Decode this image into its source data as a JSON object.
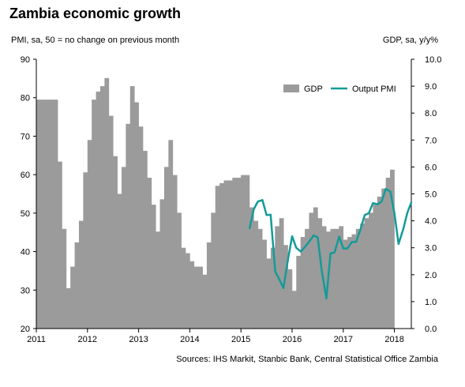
{
  "title": "Zambia economic growth",
  "left_axis_label": "PMI, sa, 50 = no change on previous month",
  "right_axis_label": "GDP, sa, y/y%",
  "source": "Sources: IHS Markit, Stanbic Bank, Central Statistical Office Zambia",
  "colors": {
    "gdp": "#9b9b9b",
    "pmi": "#139b98",
    "axis": "#000000"
  },
  "chart_data": {
    "type": "bar",
    "left_ylim": [
      20,
      90
    ],
    "left_yticks": [
      "90",
      "80",
      "70",
      "60",
      "50",
      "40",
      "30",
      "20"
    ],
    "right_ylim": [
      0.0,
      10.0
    ],
    "right_yticks": [
      "10.0",
      "9.0",
      "8.0",
      "7.0",
      "6.0",
      "5.0",
      "4.0",
      "3.0",
      "2.0",
      "1.0",
      "0.0"
    ],
    "xlim": [
      2011.0,
      2018.33
    ],
    "x_tick_labels": [
      "2011",
      "2012",
      "2013",
      "2014",
      "2015",
      "2016",
      "2017",
      "2018"
    ],
    "grid": false,
    "legend_position": "top-right",
    "series": [
      {
        "name": "GDP",
        "type": "bar",
        "axis": "right",
        "start": 2011.0,
        "step": 0.0833,
        "values": [
          8.5,
          8.5,
          8.5,
          8.5,
          8.5,
          6.2,
          3.7,
          1.5,
          2.3,
          3.2,
          4.0,
          5.8,
          7.0,
          8.5,
          8.8,
          9.0,
          9.3,
          7.9,
          6.4,
          5.0,
          6.0,
          7.6,
          9.0,
          8.4,
          7.5,
          6.6,
          5.6,
          4.6,
          3.6,
          4.8,
          6.0,
          7.0,
          5.7,
          4.3,
          3.0,
          2.8,
          2.5,
          2.3,
          2.3,
          2.0,
          3.2,
          4.3,
          5.3,
          5.4,
          5.5,
          5.5,
          5.6,
          5.6,
          5.7,
          5.7,
          4.5,
          4.0,
          3.7,
          3.3,
          2.6,
          3.0,
          3.8,
          4.1,
          3.1,
          2.2,
          1.4,
          2.7,
          3.4,
          3.7,
          4.3,
          4.5,
          4.1,
          3.8,
          3.6,
          3.7,
          3.7,
          3.8,
          3.3,
          3.4,
          3.5,
          3.7,
          3.9,
          4.1,
          4.3,
          4.6,
          4.9,
          5.2,
          5.6,
          5.9
        ]
      },
      {
        "name": "Output PMI",
        "type": "line",
        "axis": "left",
        "points": [
          [
            2015.17,
            46.1
          ],
          [
            2015.25,
            51.0
          ],
          [
            2015.33,
            53.0
          ],
          [
            2015.42,
            53.4
          ],
          [
            2015.5,
            49.5
          ],
          [
            2015.58,
            49.6
          ],
          [
            2015.67,
            34.8
          ],
          [
            2015.75,
            32.8
          ],
          [
            2015.83,
            30.5
          ],
          [
            2015.92,
            38.0
          ],
          [
            2016.0,
            44.0
          ],
          [
            2016.08,
            41.0
          ],
          [
            2016.17,
            40.0
          ],
          [
            2016.25,
            41.2
          ],
          [
            2016.33,
            42.5
          ],
          [
            2016.42,
            44.2
          ],
          [
            2016.5,
            43.7
          ],
          [
            2016.58,
            35.0
          ],
          [
            2016.67,
            27.8
          ],
          [
            2016.75,
            39.5
          ],
          [
            2016.83,
            39.8
          ],
          [
            2016.92,
            43.9
          ],
          [
            2017.0,
            40.8
          ],
          [
            2017.08,
            40.8
          ],
          [
            2017.17,
            42.5
          ],
          [
            2017.25,
            42.5
          ],
          [
            2017.33,
            45.5
          ],
          [
            2017.42,
            49.5
          ],
          [
            2017.5,
            50.0
          ],
          [
            2017.58,
            52.6
          ],
          [
            2017.67,
            52.3
          ],
          [
            2017.75,
            53.0
          ],
          [
            2017.83,
            56.3
          ],
          [
            2017.92,
            55.6
          ],
          [
            2018.0,
            50.0
          ],
          [
            2018.08,
            42.0
          ],
          [
            2018.17,
            45.7
          ],
          [
            2018.25,
            50.0
          ],
          [
            2018.33,
            52.8
          ]
        ]
      }
    ]
  }
}
